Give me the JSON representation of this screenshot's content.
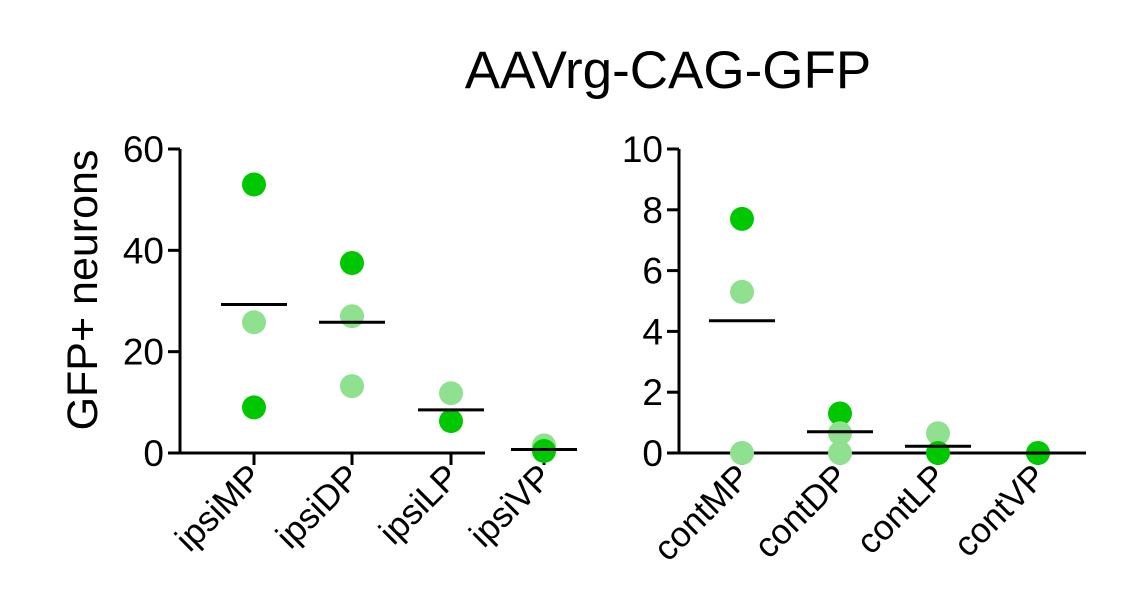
{
  "chart_data": {
    "type": "scatter",
    "title": "AAVrg-CAG-GFP",
    "ylabel": "GFP+ neurons",
    "colors": {
      "dark": "#00c800",
      "light": "#8fe08f",
      "mean": "#000000"
    },
    "panels": [
      {
        "categories": [
          "ipsiMP",
          "ipsiDP",
          "ipsiLP",
          "ipsiVP"
        ],
        "ylim": [
          0,
          60
        ],
        "yticks": [
          0,
          20,
          40,
          60
        ],
        "ytick_labels": [
          "0",
          "20",
          "40",
          "60"
        ],
        "groups": [
          {
            "mean": 29.3,
            "points": [
              {
                "y": 53,
                "shade": "dark"
              },
              {
                "y": 25.8,
                "shade": "light"
              },
              {
                "y": 9,
                "shade": "dark"
              }
            ]
          },
          {
            "mean": 25.8,
            "points": [
              {
                "y": 37.5,
                "shade": "dark"
              },
              {
                "y": 27,
                "shade": "light"
              },
              {
                "y": 13.2,
                "shade": "light"
              }
            ]
          },
          {
            "mean": 8.5,
            "points": [
              {
                "y": 11.8,
                "shade": "light"
              },
              {
                "y": 6.3,
                "shade": "dark"
              }
            ]
          },
          {
            "mean": 0.7,
            "points": [
              {
                "y": 1.5,
                "shade": "light"
              },
              {
                "y": 0.4,
                "shade": "dark"
              }
            ]
          }
        ]
      },
      {
        "categories": [
          "contMP",
          "contDP",
          "contLP",
          "contVP"
        ],
        "ylim": [
          0,
          10
        ],
        "yticks": [
          0,
          2,
          4,
          6,
          8,
          10
        ],
        "ytick_labels": [
          "0",
          "2",
          "4",
          "6",
          "8",
          "10"
        ],
        "groups": [
          {
            "mean": 4.35,
            "points": [
              {
                "y": 7.7,
                "shade": "dark"
              },
              {
                "y": 5.3,
                "shade": "light"
              },
              {
                "y": 0,
                "shade": "light"
              }
            ]
          },
          {
            "mean": 0.7,
            "points": [
              {
                "y": 1.3,
                "shade": "dark"
              },
              {
                "y": 0.65,
                "shade": "light"
              },
              {
                "y": 0,
                "shade": "light"
              }
            ]
          },
          {
            "mean": 0.22,
            "points": [
              {
                "y": 0.65,
                "shade": "light"
              },
              {
                "y": 0,
                "shade": "dark"
              }
            ]
          },
          {
            "mean": 0,
            "points": [
              {
                "y": 0,
                "shade": "dark"
              }
            ]
          }
        ]
      }
    ]
  }
}
